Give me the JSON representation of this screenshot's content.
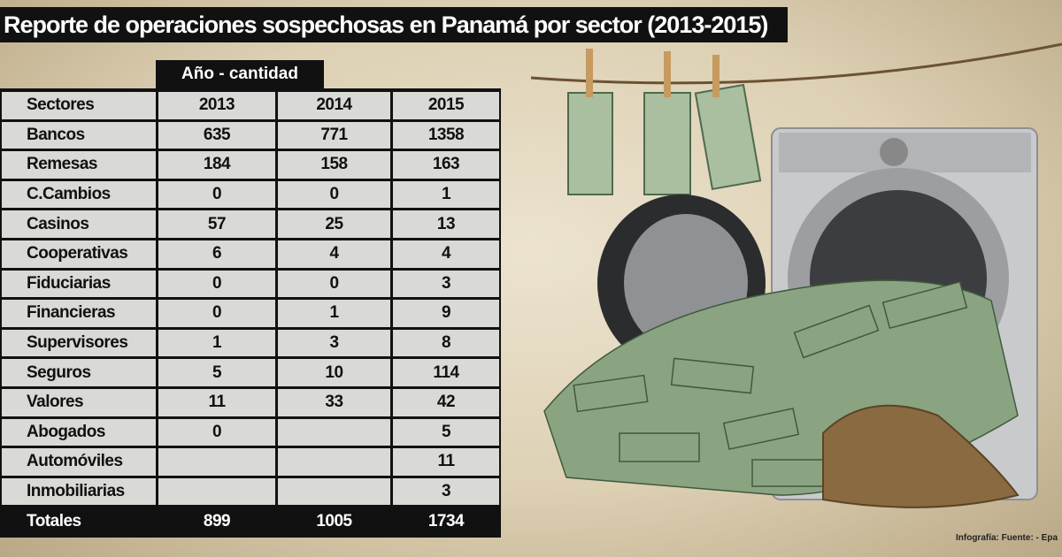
{
  "header": {
    "title": "Reporte de operaciones sospechosas en Panamá  por sector (2013-2015)"
  },
  "table": {
    "caption": "Año - cantidad",
    "columns": [
      "Sectores",
      "2013",
      "2014",
      "2015"
    ],
    "rows": [
      [
        "Bancos",
        635,
        771,
        1358
      ],
      [
        "Remesas",
        184,
        158,
        163
      ],
      [
        "C.Cambios",
        0,
        0,
        1
      ],
      [
        "Casinos",
        57,
        25,
        13
      ],
      [
        "Cooperativas",
        6,
        4,
        4
      ],
      [
        "Fiduciarias",
        0,
        0,
        3
      ],
      [
        "Financieras",
        0,
        1,
        9
      ],
      [
        "Supervisores",
        1,
        3,
        8
      ],
      [
        "Seguros",
        5,
        10,
        114
      ],
      [
        "Valores",
        11,
        33,
        42
      ],
      [
        "Abogados",
        0,
        null,
        5
      ],
      [
        "Automóviles",
        null,
        null,
        11
      ],
      [
        "Inmobiliarias",
        null,
        null,
        3
      ]
    ],
    "totals": [
      "Totales",
      899,
      1005,
      1734
    ]
  },
  "footer": {
    "credit": "Infografía: Fuente: - Epa"
  }
}
